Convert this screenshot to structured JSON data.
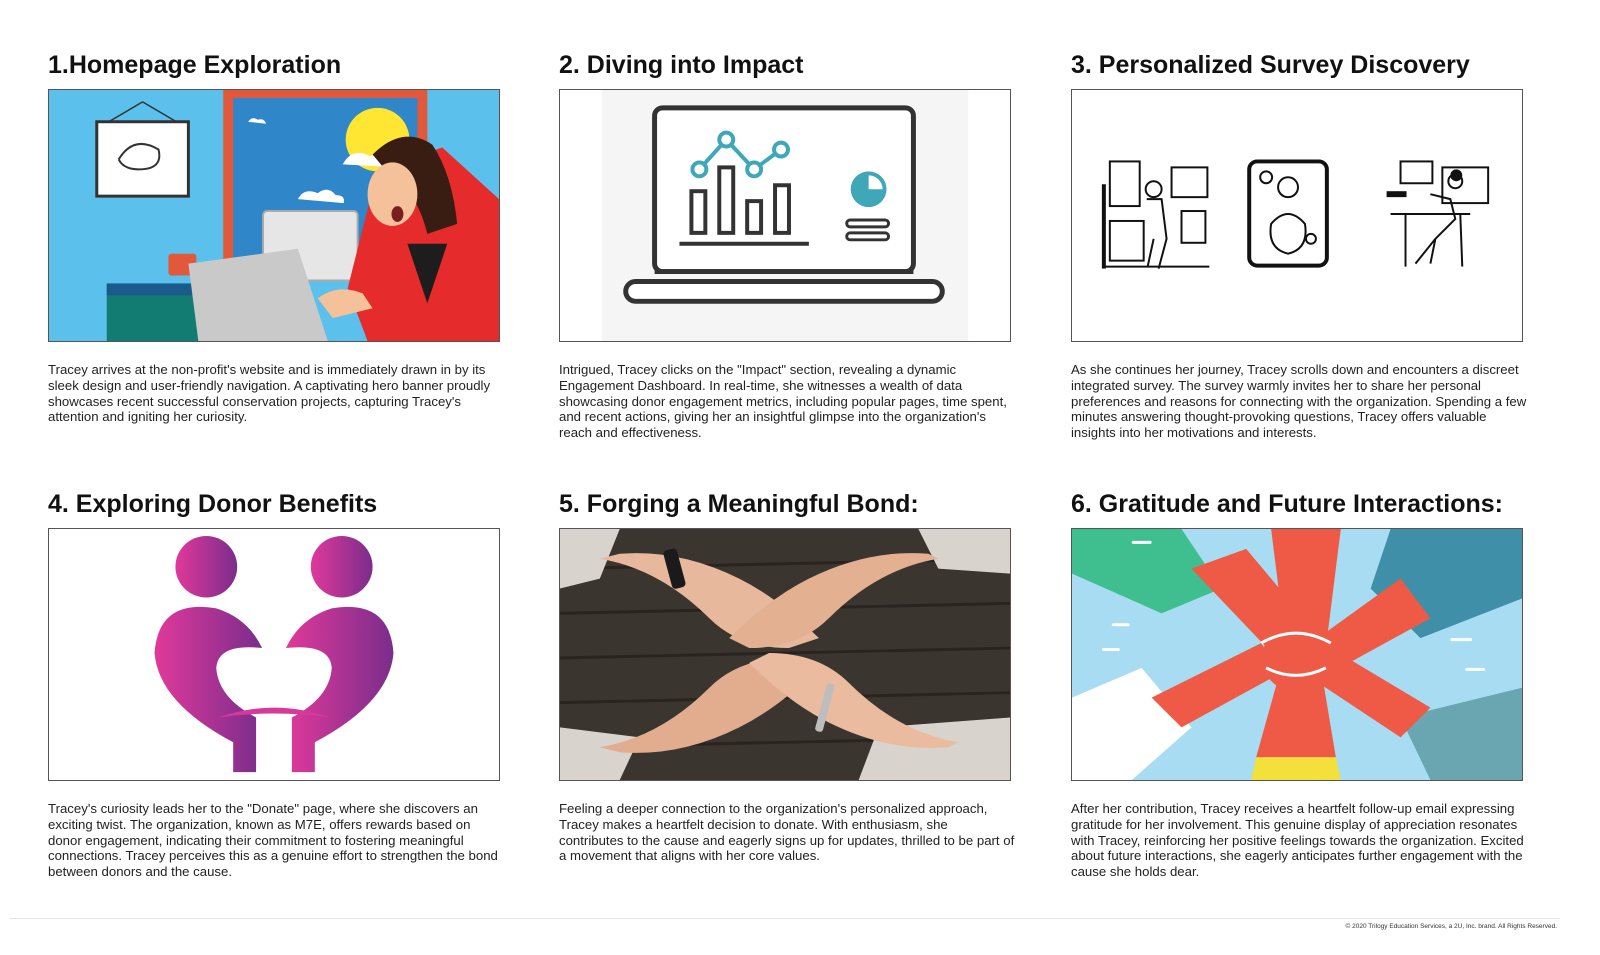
{
  "panels": [
    {
      "title": "1.Homepage Exploration",
      "image": "woman-at-laptop-illustration",
      "caption": "Tracey arrives at the non-profit's website and is immediately drawn in by its sleek design and user-friendly navigation. A captivating hero banner proudly showcases recent successful conservation projects, capturing Tracey's attention and igniting her curiosity."
    },
    {
      "title": "2. Diving into Impact",
      "image": "laptop-dashboard-icon",
      "caption": "Intrigued, Tracey clicks on the \"Impact\" section, revealing a dynamic Engagement Dashboard. In real-time, she witnesses a wealth of data showcasing donor engagement metrics, including popular pages, time spent, and recent actions, giving her an insightful glimpse into the organization's reach and effectiveness."
    },
    {
      "title": "3. Personalized Survey Discovery",
      "image": "survey-line-illustrations",
      "caption": " As she continues her journey, Tracey scrolls down and encounters a discreet integrated survey. The survey warmly invites her to share her personal preferences and reasons for connecting with the organization. Spending a few minutes answering thought-provoking questions, Tracey offers valuable insights into her motivations and interests."
    },
    {
      "title": "4. Exploring Donor Benefits",
      "image": "two-people-heart-logo",
      "caption": "Tracey's curiosity leads her to the \"Donate\" page, where she discovers an exciting twist. The organization, known as M7E, offers rewards based on donor engagement, indicating their commitment to fostering meaningful connections. Tracey perceives this as a genuine effort to strengthen the bond between donors and the cause."
    },
    {
      "title": "5. Forging a Meaningful Bond:",
      "image": "joined-hands-photo",
      "caption": "Feeling a deeper connection to the organization's personalized approach, Tracey makes a heartfelt decision to donate. With enthusiasm, she contributes to the cause and eagerly signs up for updates, thrilled to be part of a movement that aligns with her core values."
    },
    {
      "title": "6. Gratitude and Future Interactions:",
      "image": "stacked-hands-illustration",
      "caption": "After her contribution, Tracey receives a heartfelt follow-up email expressing gratitude for her involvement. This genuine display of appreciation resonates with Tracey, reinforcing her positive feelings towards the organization. Excited about future interactions, she eagerly anticipates further engagement with the cause she holds dear."
    }
  ],
  "footer": "© 2020 Trilogy Education Services, a 2U, Inc. brand. All Rights Reserved.",
  "colors": {
    "teal": "#3fa7b8",
    "magenta": "#d6399a",
    "purple": "#7a2d8c",
    "coral": "#ee5a45",
    "sky": "#a7dcf2"
  }
}
